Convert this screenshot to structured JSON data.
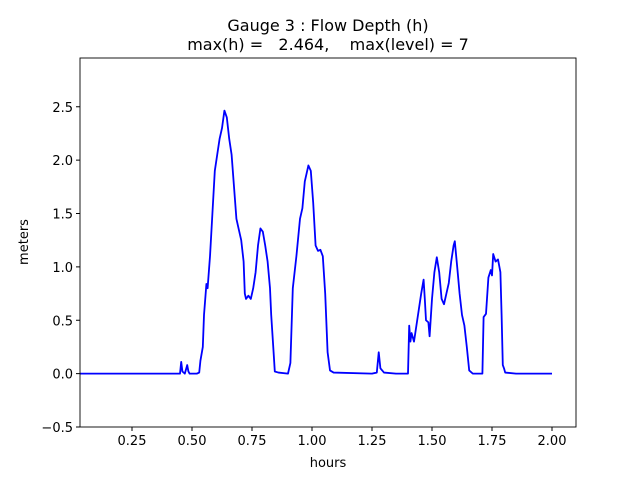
{
  "chart_data": {
    "type": "line",
    "title": "Gauge 3 : Flow Depth (h)",
    "subtitle": "max(h) =   2.464,    max(level) = 7",
    "x_label": "hours",
    "y_label": "meters",
    "xlim": [
      0.0333,
      2.1
    ],
    "ylim": [
      -0.5,
      2.9568
    ],
    "xticks": [
      0.25,
      {
        "value": 0.5,
        "label": "0.50"
      },
      0.75,
      {
        "value": 1.0,
        "label": "1.00"
      },
      1.25,
      {
        "value": 1.5,
        "label": "1.50"
      },
      1.75,
      {
        "value": 2.0,
        "label": "2.00"
      }
    ],
    "yticks": [
      {
        "value": -0.5,
        "label": "−0.5"
      },
      {
        "value": 0,
        "label": "0.0"
      },
      0.5,
      {
        "value": 1,
        "label": "1.0"
      },
      1.5,
      {
        "value": 2,
        "label": "2.0"
      },
      2.5
    ],
    "grid": false,
    "series": [
      {
        "color": "#0000ff",
        "x": [
          0.0333,
          0.45,
          0.455,
          0.46,
          0.47,
          0.48,
          0.485,
          0.49,
          0.52,
          0.53,
          0.535,
          0.545,
          0.55,
          0.56,
          0.565,
          0.575,
          0.585,
          0.595,
          0.605,
          0.615,
          0.625,
          0.635,
          0.645,
          0.655,
          0.665,
          0.675,
          0.685,
          0.695,
          0.705,
          0.715,
          0.72,
          0.725,
          0.735,
          0.745,
          0.755,
          0.765,
          0.775,
          0.785,
          0.795,
          0.805,
          0.815,
          0.825,
          0.83,
          0.84,
          0.845,
          0.86,
          0.9,
          0.91,
          0.92,
          0.935,
          0.95,
          0.96,
          0.97,
          0.985,
          0.995,
          1.005,
          1.015,
          1.025,
          1.035,
          1.045,
          1.055,
          1.065,
          1.075,
          1.09,
          1.25,
          1.27,
          1.278,
          1.285,
          1.3,
          1.35,
          1.4,
          1.405,
          1.41,
          1.415,
          1.425,
          1.435,
          1.445,
          1.455,
          1.465,
          1.47,
          1.475,
          1.485,
          1.49,
          1.5,
          1.51,
          1.52,
          1.53,
          1.54,
          1.55,
          1.56,
          1.57,
          1.58,
          1.59,
          1.595,
          1.605,
          1.615,
          1.625,
          1.635,
          1.645,
          1.655,
          1.67,
          1.71,
          1.715,
          1.725,
          1.735,
          1.745,
          1.75,
          1.755,
          1.765,
          1.775,
          1.785,
          1.79,
          1.795,
          1.8,
          1.805,
          1.85,
          2.0
        ],
        "values": [
          0,
          0,
          0.11,
          0.02,
          0,
          0.08,
          0.02,
          0,
          0,
          0.01,
          0.12,
          0.25,
          0.55,
          0.84,
          0.8,
          1.1,
          1.5,
          1.9,
          2.05,
          2.2,
          2.3,
          2.464,
          2.4,
          2.2,
          2.05,
          1.75,
          1.45,
          1.35,
          1.25,
          1.05,
          0.75,
          0.7,
          0.73,
          0.7,
          0.8,
          0.95,
          1.2,
          1.36,
          1.33,
          1.2,
          1.05,
          0.8,
          0.55,
          0.2,
          0.02,
          0.01,
          0,
          0.1,
          0.8,
          1.1,
          1.45,
          1.55,
          1.8,
          1.95,
          1.9,
          1.6,
          1.2,
          1.15,
          1.16,
          1.1,
          0.75,
          0.2,
          0.03,
          0.01,
          0,
          0.01,
          0.2,
          0.05,
          0.01,
          0,
          0,
          0.45,
          0.3,
          0.38,
          0.3,
          0.45,
          0.6,
          0.75,
          0.88,
          0.7,
          0.5,
          0.48,
          0.35,
          0.7,
          0.95,
          1.09,
          0.95,
          0.7,
          0.65,
          0.75,
          0.85,
          1.05,
          1.2,
          1.24,
          1.0,
          0.75,
          0.55,
          0.45,
          0.25,
          0.03,
          0,
          0,
          0.53,
          0.56,
          0.9,
          0.97,
          0.92,
          1.12,
          1.05,
          1.07,
          0.95,
          0.55,
          0.08,
          0.05,
          0.01,
          0,
          0
        ]
      }
    ]
  }
}
